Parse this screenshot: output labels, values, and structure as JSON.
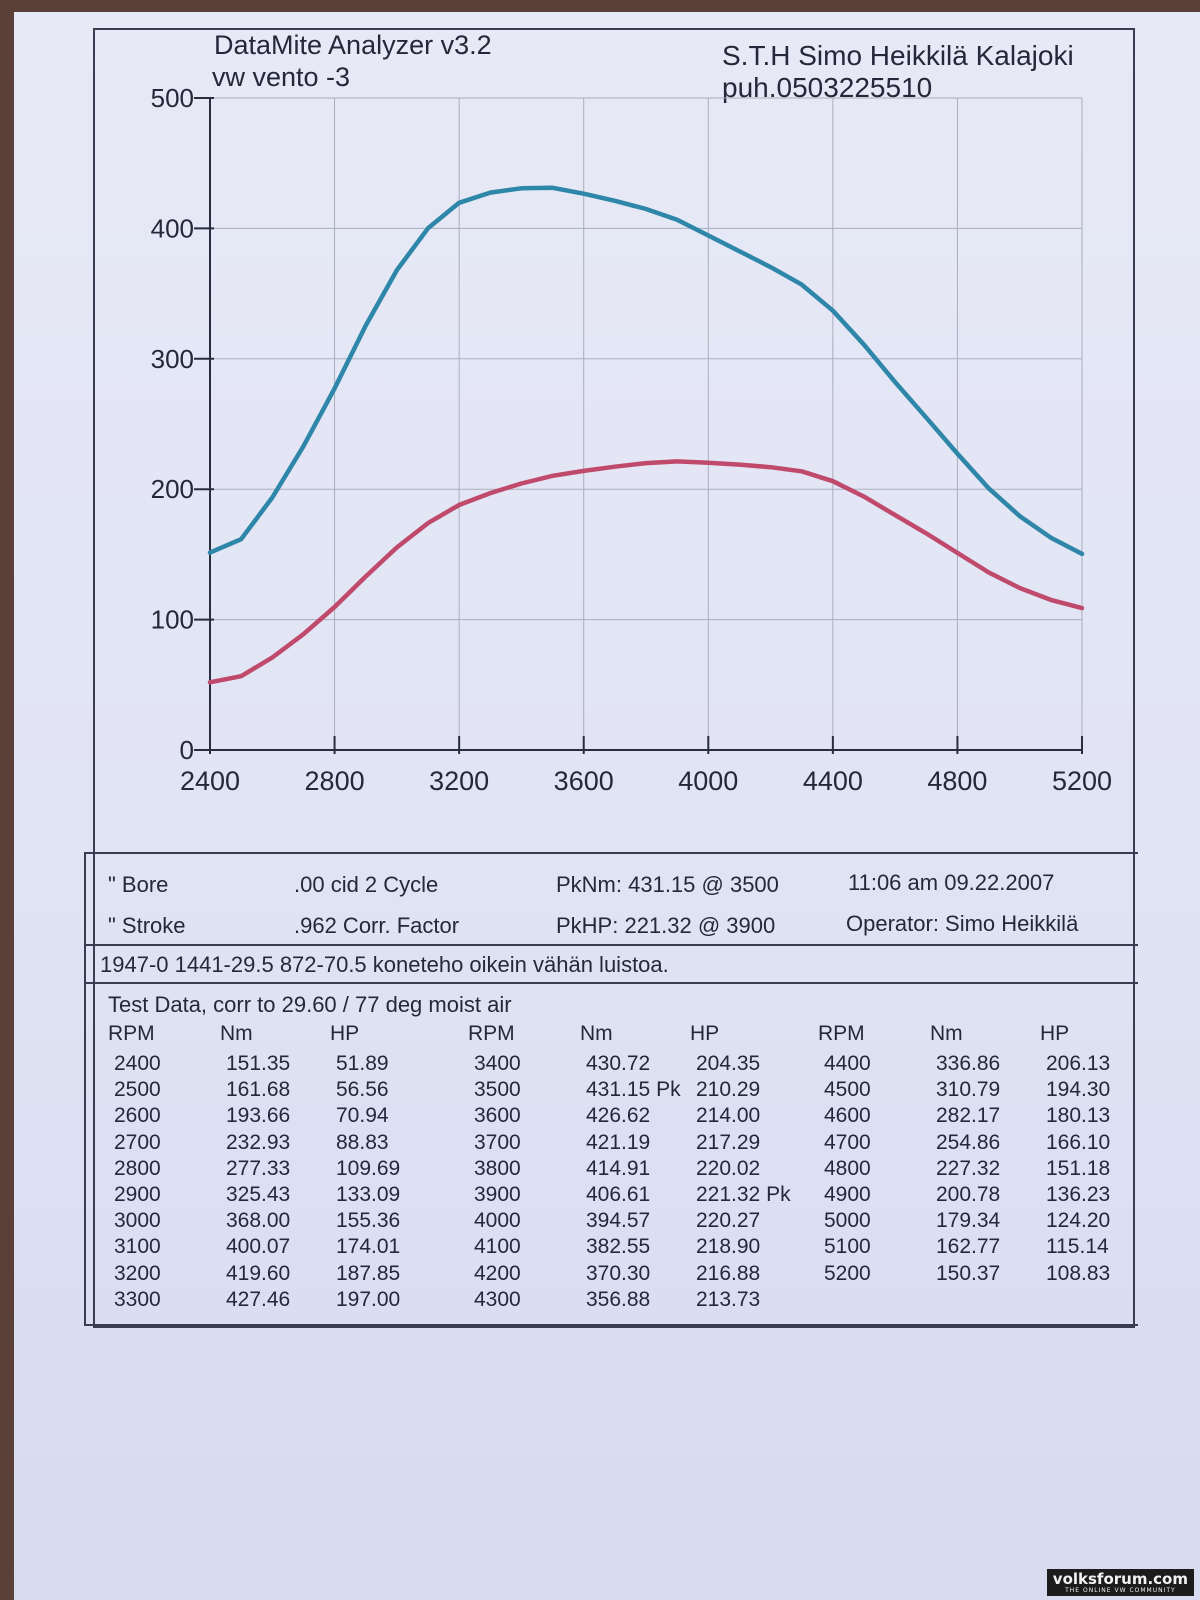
{
  "header": {
    "app": "DataMite Analyzer v3.2",
    "vehicle": "vw vento   -3",
    "shop": "S.T.H Simo Heikkilä Kalajoki",
    "phone": "puh.0503225510"
  },
  "chart_data": {
    "type": "line",
    "x": [
      2400,
      2500,
      2600,
      2700,
      2800,
      2900,
      3000,
      3100,
      3200,
      3300,
      3400,
      3500,
      3600,
      3700,
      3800,
      3900,
      4000,
      4100,
      4200,
      4300,
      4400,
      4500,
      4600,
      4700,
      4800,
      4900,
      5000,
      5100,
      5200
    ],
    "series": [
      {
        "name": "Nm",
        "color": "#2e86a8",
        "values": [
          151.35,
          161.68,
          193.66,
          232.93,
          277.33,
          325.43,
          368.0,
          400.07,
          419.6,
          427.46,
          430.72,
          431.15,
          426.62,
          421.19,
          414.91,
          406.61,
          394.57,
          382.55,
          370.3,
          356.88,
          336.86,
          310.79,
          282.17,
          254.86,
          227.32,
          200.78,
          179.34,
          162.77,
          150.37
        ]
      },
      {
        "name": "HP",
        "color": "#c04a6c",
        "values": [
          51.89,
          56.56,
          70.94,
          88.83,
          109.69,
          133.09,
          155.36,
          174.01,
          187.85,
          197.0,
          204.35,
          210.29,
          214.0,
          217.29,
          220.02,
          221.32,
          220.27,
          218.9,
          216.88,
          213.73,
          206.13,
          194.3,
          180.13,
          166.1,
          151.18,
          136.23,
          124.2,
          115.14,
          108.83
        ]
      }
    ],
    "xlim": [
      2400,
      5200
    ],
    "ylim": [
      0,
      500
    ],
    "x_ticks": [
      "2400",
      "2800",
      "3200",
      "3600",
      "4000",
      "4400",
      "4800",
      "5200"
    ],
    "y_ticks": [
      "0",
      "100",
      "200",
      "300",
      "400",
      "500"
    ],
    "grid": true
  },
  "specs": {
    "bore": "\" Bore",
    "bore_value": ".00 cid  2 Cycle",
    "stroke": "\" Stroke",
    "stroke_value": ".962 Corr. Factor",
    "pk_nm": "PkNm: 431.15 @  3500",
    "pk_hp": "PkHP: 221.32 @  3900",
    "time_date": "11:06 am  09.22.2007",
    "operator": "Operator: Simo Heikkilä"
  },
  "note": "1947-0  1441-29.5  872-70.5 koneteho oikein vähän luistoa.",
  "test_data": {
    "title": "Test Data, corr to 29.60 / 77 deg moist air",
    "headers": [
      "RPM",
      "Nm",
      "HP"
    ],
    "columns": [
      [
        [
          "2400",
          "151.35",
          "51.89"
        ],
        [
          "2500",
          "161.68",
          "56.56"
        ],
        [
          "2600",
          "193.66",
          "70.94"
        ],
        [
          "2700",
          "232.93",
          "88.83"
        ],
        [
          "2800",
          "277.33",
          "109.69"
        ],
        [
          "2900",
          "325.43",
          "133.09"
        ],
        [
          "3000",
          "368.00",
          "155.36"
        ],
        [
          "3100",
          "400.07",
          "174.01"
        ],
        [
          "3200",
          "419.60",
          "187.85"
        ],
        [
          "3300",
          "427.46",
          "197.00"
        ]
      ],
      [
        [
          "3400",
          "430.72",
          "204.35"
        ],
        [
          "3500",
          "431.15 Pk",
          "210.29"
        ],
        [
          "3600",
          "426.62",
          "214.00"
        ],
        [
          "3700",
          "421.19",
          "217.29"
        ],
        [
          "3800",
          "414.91",
          "220.02"
        ],
        [
          "3900",
          "406.61",
          "221.32 Pk"
        ],
        [
          "4000",
          "394.57",
          "220.27"
        ],
        [
          "4100",
          "382.55",
          "218.90"
        ],
        [
          "4200",
          "370.30",
          "216.88"
        ],
        [
          "4300",
          "356.88",
          "213.73"
        ]
      ],
      [
        [
          "4400",
          "336.86",
          "206.13"
        ],
        [
          "4500",
          "310.79",
          "194.30"
        ],
        [
          "4600",
          "282.17",
          "180.13"
        ],
        [
          "4700",
          "254.86",
          "166.10"
        ],
        [
          "4800",
          "227.32",
          "151.18"
        ],
        [
          "4900",
          "200.78",
          "136.23"
        ],
        [
          "5000",
          "179.34",
          "124.20"
        ],
        [
          "5100",
          "162.77",
          "115.14"
        ],
        [
          "5200",
          "150.37",
          "108.83"
        ]
      ]
    ]
  },
  "watermark": {
    "title": "volksforum.com",
    "subtitle": "THE ONLINE VW COMMUNITY"
  }
}
